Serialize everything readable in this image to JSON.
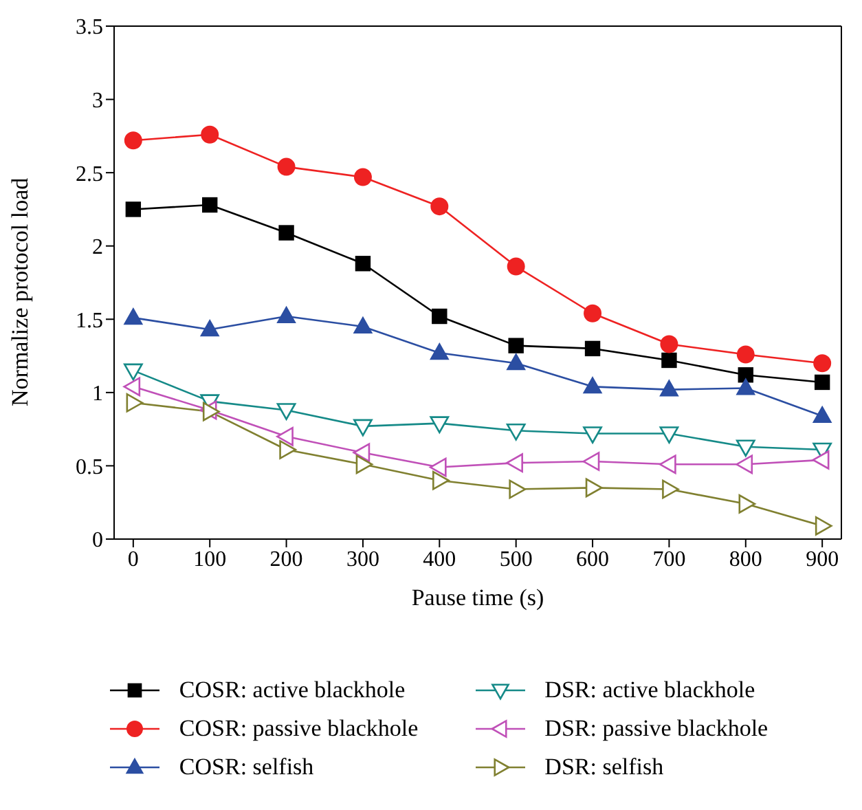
{
  "chart_data": {
    "type": "line",
    "xlabel": "Pause time (s)",
    "ylabel": "Normalize protocol load",
    "x": [
      0,
      100,
      200,
      300,
      400,
      500,
      600,
      700,
      800,
      900
    ],
    "xlim": [
      -25,
      925
    ],
    "xticks": [
      0,
      100,
      200,
      300,
      400,
      500,
      600,
      700,
      800,
      900
    ],
    "ylim": [
      0,
      3.5
    ],
    "yticks": [
      0,
      0.5,
      1,
      1.5,
      2,
      2.5,
      3,
      3.5
    ],
    "legend": "bottom",
    "series": [
      {
        "name": "COSR: active blackhole",
        "color": "#000000",
        "marker": "square",
        "values": [
          2.25,
          2.28,
          2.09,
          1.88,
          1.52,
          1.32,
          1.3,
          1.22,
          1.12,
          1.07
        ]
      },
      {
        "name": "COSR: passive blackhole",
        "color": "#ee2222",
        "marker": "circle",
        "values": [
          2.72,
          2.76,
          2.54,
          2.47,
          2.27,
          1.86,
          1.54,
          1.33,
          1.26,
          1.2
        ]
      },
      {
        "name": "COSR: selfish",
        "color": "#2b4ea2",
        "marker": "triangle",
        "values": [
          1.51,
          1.43,
          1.52,
          1.45,
          1.27,
          1.2,
          1.04,
          1.02,
          1.03,
          0.84
        ]
      },
      {
        "name": "DSR: active blackhole",
        "color": "#158a88",
        "marker": "triangle-down-open",
        "values": [
          1.15,
          0.94,
          0.88,
          0.77,
          0.79,
          0.74,
          0.72,
          0.72,
          0.63,
          0.61
        ]
      },
      {
        "name": "DSR: passive blackhole",
        "color": "#c050b8",
        "marker": "triangle-left-open",
        "values": [
          1.04,
          0.88,
          0.7,
          0.59,
          0.49,
          0.52,
          0.53,
          0.51,
          0.51,
          0.54
        ]
      },
      {
        "name": "DSR: selfish",
        "color": "#808030",
        "marker": "triangle-right-open",
        "values": [
          0.93,
          0.87,
          0.61,
          0.51,
          0.4,
          0.34,
          0.35,
          0.34,
          0.24,
          0.09
        ]
      }
    ]
  }
}
